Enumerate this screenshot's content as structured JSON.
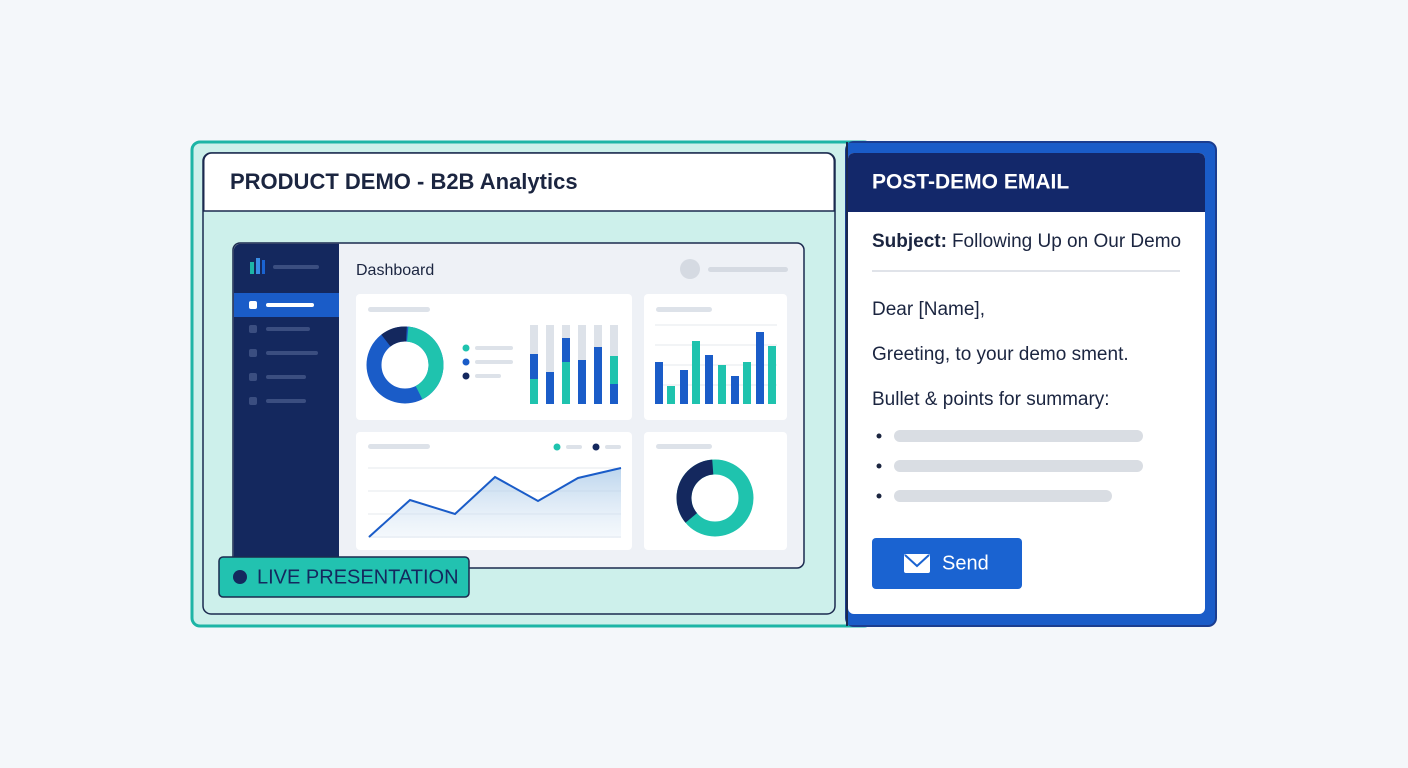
{
  "left_panel": {
    "title": "PRODUCT DEMO - B2B Analytics",
    "dashboard_title": "Dashboard",
    "badge": "LIVE PRESENTATION"
  },
  "email": {
    "title": "POST-DEMO EMAIL",
    "subject_label": "Subject:",
    "subject": "Following Up on Our Demo",
    "greeting": "Dear [Name],",
    "body": "Greeting, to your demo sment.",
    "bullets_intro": "Bullet & points for summary:",
    "send_button": "Send"
  }
}
